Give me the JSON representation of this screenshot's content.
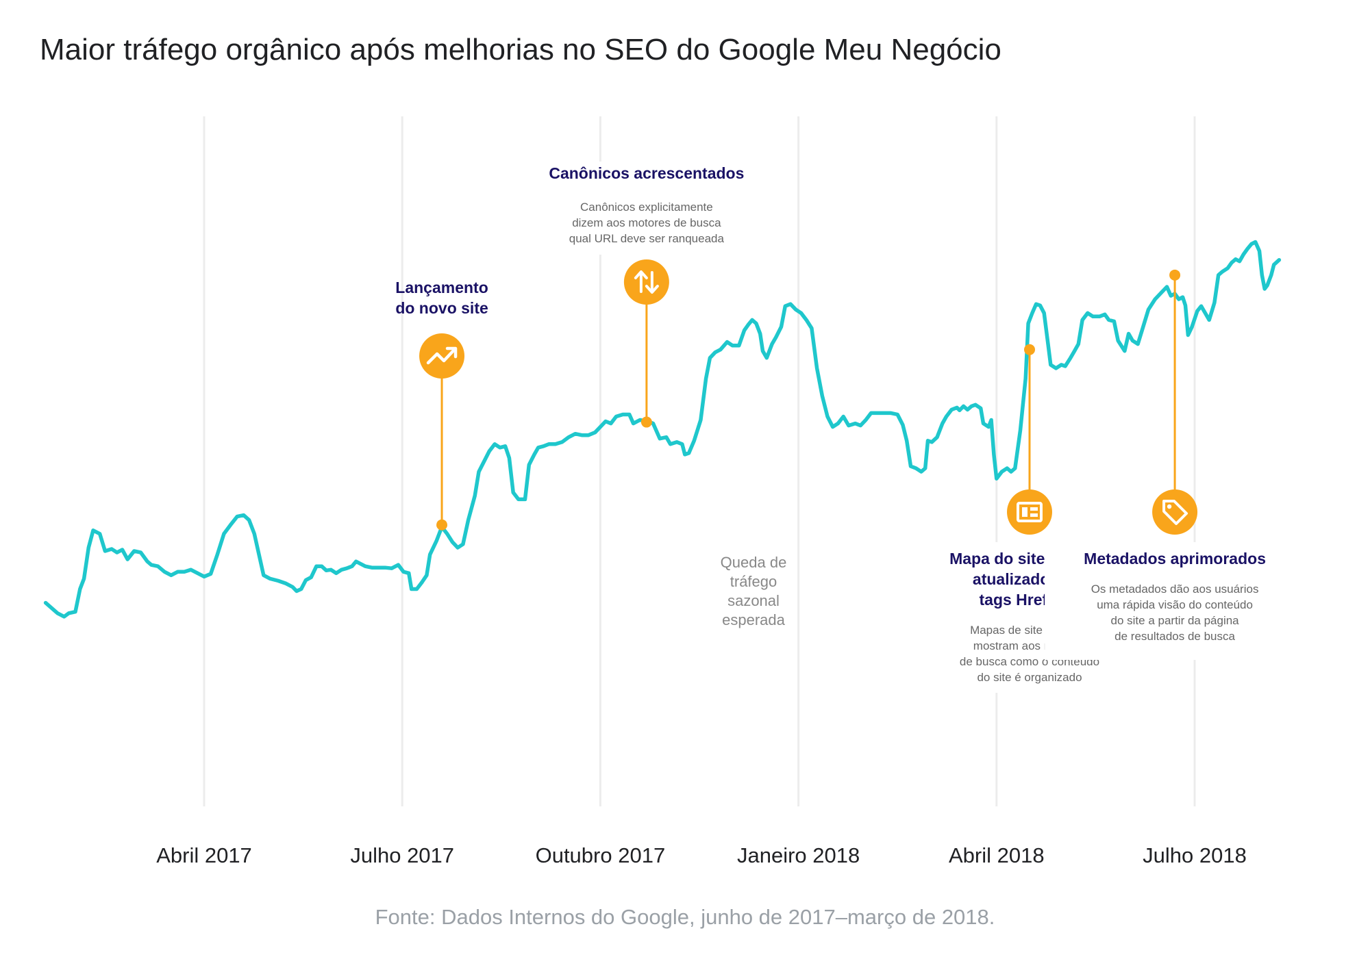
{
  "title": "Maior tráfego orgânico após melhorias no SEO do Google Meu Negócio",
  "source": "Fonte: Dados Internos do Google, junho de 2017–março de 2018.",
  "colors": {
    "line": "#1fc7cc",
    "marker": "#f9a51b",
    "heading": "#1a1265",
    "body": "#666666",
    "grid": "#ececec",
    "axis_label": "#202124",
    "note": "#888888"
  },
  "chart_data": {
    "type": "line",
    "title": "Maior tráfego orgânico após melhorias no SEO do Google Meu Negócio",
    "x_tick_labels": [
      "Abril 2017",
      "Julho 2017",
      "Outubro 2017",
      "Janeiro 2018",
      "Abril 2018",
      "Julho 2018"
    ],
    "x_unit": "months since 2017-01-01 (Abril 2017 = 3, Julho 2018 = 18)",
    "xlim": [
      0.6,
      18.4
    ],
    "ylim": [
      0,
      100
    ],
    "y_axis_visible": false,
    "grid": "vertical lines at month ticks",
    "series": [
      {
        "name": "Tráfego orgânico",
        "color": "#1fc7cc",
        "points": [
          [
            0.6,
            29.5
          ],
          [
            0.78,
            28.0
          ],
          [
            0.88,
            27.5
          ],
          [
            0.95,
            28.0
          ],
          [
            1.05,
            28.2
          ],
          [
            1.12,
            31.5
          ],
          [
            1.18,
            33.0
          ],
          [
            1.25,
            37.5
          ],
          [
            1.32,
            40.0
          ],
          [
            1.42,
            39.5
          ],
          [
            1.5,
            37.0
          ],
          [
            1.6,
            37.3
          ],
          [
            1.68,
            36.8
          ],
          [
            1.76,
            37.2
          ],
          [
            1.84,
            35.8
          ],
          [
            1.94,
            37.0
          ],
          [
            2.04,
            36.8
          ],
          [
            2.14,
            35.5
          ],
          [
            2.2,
            35.0
          ],
          [
            2.3,
            34.8
          ],
          [
            2.4,
            34.0
          ],
          [
            2.5,
            33.5
          ],
          [
            2.6,
            34.0
          ],
          [
            2.7,
            34.0
          ],
          [
            2.8,
            34.3
          ],
          [
            2.9,
            33.8
          ],
          [
            3.0,
            33.3
          ],
          [
            3.1,
            33.7
          ],
          [
            3.2,
            36.5
          ],
          [
            3.3,
            39.5
          ],
          [
            3.4,
            40.8
          ],
          [
            3.5,
            42.0
          ],
          [
            3.6,
            42.2
          ],
          [
            3.68,
            41.5
          ],
          [
            3.76,
            39.5
          ],
          [
            3.9,
            33.5
          ],
          [
            4.0,
            33.0
          ],
          [
            4.12,
            32.7
          ],
          [
            4.24,
            32.3
          ],
          [
            4.34,
            31.8
          ],
          [
            4.4,
            31.2
          ],
          [
            4.47,
            31.5
          ],
          [
            4.54,
            32.8
          ],
          [
            4.62,
            33.2
          ],
          [
            4.7,
            34.8
          ],
          [
            4.78,
            34.8
          ],
          [
            4.85,
            34.2
          ],
          [
            4.92,
            34.3
          ],
          [
            5.0,
            33.8
          ],
          [
            5.08,
            34.3
          ],
          [
            5.16,
            34.5
          ],
          [
            5.24,
            34.8
          ],
          [
            5.3,
            35.5
          ],
          [
            5.36,
            35.2
          ],
          [
            5.44,
            34.8
          ],
          [
            5.54,
            34.6
          ],
          [
            5.64,
            34.6
          ],
          [
            5.74,
            34.6
          ],
          [
            5.84,
            34.5
          ],
          [
            5.94,
            35.0
          ],
          [
            6.02,
            34.0
          ],
          [
            6.1,
            33.8
          ],
          [
            6.14,
            31.5
          ],
          [
            6.22,
            31.5
          ],
          [
            6.3,
            32.5
          ],
          [
            6.37,
            33.5
          ],
          [
            6.42,
            36.5
          ],
          [
            6.52,
            38.5
          ],
          [
            6.6,
            40.5
          ],
          [
            6.68,
            39.5
          ],
          [
            6.76,
            38.3
          ],
          [
            6.84,
            37.5
          ],
          [
            6.92,
            38.0
          ],
          [
            7.0,
            41.5
          ],
          [
            7.1,
            45.0
          ],
          [
            7.16,
            48.5
          ],
          [
            7.24,
            50.0
          ],
          [
            7.32,
            51.5
          ],
          [
            7.4,
            52.5
          ],
          [
            7.48,
            52.0
          ],
          [
            7.56,
            52.2
          ],
          [
            7.62,
            50.5
          ],
          [
            7.68,
            45.5
          ],
          [
            7.76,
            44.5
          ],
          [
            7.86,
            44.5
          ],
          [
            7.92,
            49.5
          ],
          [
            8.0,
            51.0
          ],
          [
            8.06,
            52.0
          ],
          [
            8.14,
            52.2
          ],
          [
            8.22,
            52.5
          ],
          [
            8.32,
            52.5
          ],
          [
            8.42,
            52.8
          ],
          [
            8.52,
            53.5
          ],
          [
            8.62,
            54.0
          ],
          [
            8.72,
            53.8
          ],
          [
            8.82,
            53.8
          ],
          [
            8.92,
            54.2
          ],
          [
            9.0,
            55.0
          ],
          [
            9.08,
            55.8
          ],
          [
            9.16,
            55.5
          ],
          [
            9.24,
            56.5
          ],
          [
            9.34,
            56.8
          ],
          [
            9.44,
            56.8
          ],
          [
            9.5,
            55.5
          ],
          [
            9.6,
            56.0
          ],
          [
            9.72,
            55.8
          ],
          [
            9.8,
            55.5
          ],
          [
            9.9,
            53.3
          ],
          [
            10.0,
            53.5
          ],
          [
            10.06,
            52.5
          ],
          [
            10.16,
            52.8
          ],
          [
            10.24,
            52.5
          ],
          [
            10.28,
            51.0
          ],
          [
            10.34,
            51.2
          ],
          [
            10.42,
            53.0
          ],
          [
            10.52,
            56.0
          ],
          [
            10.6,
            62.0
          ],
          [
            10.66,
            65.0
          ],
          [
            10.74,
            65.8
          ],
          [
            10.82,
            66.2
          ],
          [
            10.92,
            67.3
          ],
          [
            11.0,
            66.8
          ],
          [
            11.1,
            66.8
          ],
          [
            11.18,
            69.0
          ],
          [
            11.24,
            69.8
          ],
          [
            11.3,
            70.5
          ],
          [
            11.36,
            70.0
          ],
          [
            11.42,
            68.5
          ],
          [
            11.46,
            66.0
          ],
          [
            11.52,
            65.0
          ],
          [
            11.6,
            67.0
          ],
          [
            11.66,
            68.0
          ],
          [
            11.74,
            69.5
          ],
          [
            11.8,
            72.5
          ],
          [
            11.88,
            72.8
          ],
          [
            11.96,
            72.0
          ],
          [
            12.04,
            71.5
          ],
          [
            12.12,
            70.5
          ],
          [
            12.2,
            69.3
          ],
          [
            12.28,
            63.5
          ],
          [
            12.36,
            59.5
          ],
          [
            12.44,
            56.5
          ],
          [
            12.52,
            55.0
          ],
          [
            12.6,
            55.5
          ],
          [
            12.68,
            56.5
          ],
          [
            12.76,
            55.2
          ],
          [
            12.86,
            55.5
          ],
          [
            12.94,
            55.2
          ],
          [
            13.02,
            56.0
          ],
          [
            13.1,
            57.0
          ],
          [
            13.2,
            57.0
          ],
          [
            13.3,
            57.0
          ],
          [
            13.4,
            57.0
          ],
          [
            13.5,
            56.8
          ],
          [
            13.58,
            55.3
          ],
          [
            13.64,
            53.0
          ],
          [
            13.7,
            49.3
          ],
          [
            13.78,
            49.0
          ],
          [
            13.86,
            48.5
          ],
          [
            13.92,
            49.0
          ],
          [
            13.96,
            53.0
          ],
          [
            14.02,
            52.8
          ],
          [
            14.1,
            53.5
          ],
          [
            14.18,
            55.5
          ],
          [
            14.24,
            56.5
          ],
          [
            14.32,
            57.5
          ],
          [
            14.4,
            57.8
          ],
          [
            14.44,
            57.4
          ],
          [
            14.5,
            58.0
          ],
          [
            14.56,
            57.5
          ],
          [
            14.62,
            58.0
          ],
          [
            14.68,
            58.2
          ],
          [
            14.76,
            57.7
          ],
          [
            14.8,
            55.5
          ],
          [
            14.88,
            55.0
          ],
          [
            14.92,
            56.0
          ],
          [
            14.96,
            51.0
          ],
          [
            15.0,
            47.5
          ],
          [
            15.08,
            48.5
          ],
          [
            15.16,
            49.0
          ],
          [
            15.22,
            48.5
          ],
          [
            15.28,
            49.0
          ],
          [
            15.36,
            54.5
          ],
          [
            15.44,
            62.0
          ],
          [
            15.48,
            70.0
          ],
          [
            15.54,
            71.5
          ],
          [
            15.6,
            72.8
          ],
          [
            15.66,
            72.6
          ],
          [
            15.72,
            71.5
          ],
          [
            15.78,
            67.0
          ],
          [
            15.82,
            64.0
          ],
          [
            15.9,
            63.5
          ],
          [
            15.98,
            64.0
          ],
          [
            16.04,
            63.8
          ],
          [
            16.12,
            65.0
          ],
          [
            16.18,
            66.0
          ],
          [
            16.24,
            67.0
          ],
          [
            16.3,
            70.5
          ],
          [
            16.38,
            71.5
          ],
          [
            16.46,
            71.0
          ],
          [
            16.56,
            71.0
          ],
          [
            16.64,
            71.3
          ],
          [
            16.7,
            70.5
          ],
          [
            16.78,
            70.3
          ],
          [
            16.84,
            67.5
          ],
          [
            16.94,
            66.0
          ],
          [
            17.0,
            68.5
          ],
          [
            17.06,
            67.5
          ],
          [
            17.14,
            67.0
          ],
          [
            17.22,
            69.5
          ],
          [
            17.3,
            72.0
          ],
          [
            17.4,
            73.5
          ],
          [
            17.5,
            74.5
          ],
          [
            17.58,
            75.3
          ],
          [
            17.64,
            74.0
          ],
          [
            17.7,
            74.3
          ],
          [
            17.76,
            73.5
          ],
          [
            17.82,
            73.8
          ],
          [
            17.86,
            72.6
          ],
          [
            17.9,
            68.3
          ],
          [
            17.96,
            69.5
          ],
          [
            18.04,
            71.8
          ],
          [
            18.1,
            72.5
          ],
          [
            18.16,
            71.5
          ],
          [
            18.22,
            70.5
          ],
          [
            18.3,
            73.0
          ],
          [
            18.36,
            77.0
          ],
          [
            18.42,
            77.5
          ],
          [
            18.5,
            78.0
          ],
          [
            18.56,
            78.8
          ],
          [
            18.62,
            79.3
          ],
          [
            18.68,
            79.0
          ],
          [
            18.74,
            80.0
          ],
          [
            18.8,
            80.8
          ],
          [
            18.86,
            81.5
          ],
          [
            18.92,
            81.8
          ],
          [
            18.98,
            80.5
          ],
          [
            19.02,
            77.0
          ],
          [
            19.06,
            75.0
          ],
          [
            19.1,
            75.5
          ],
          [
            19.16,
            77.0
          ],
          [
            19.2,
            78.5
          ],
          [
            19.28,
            79.2
          ]
        ]
      }
    ],
    "annotations": [
      {
        "id": "lancamento",
        "x": 6.6,
        "y": 40.8,
        "heading": [
          "Lançamento",
          "do novo site"
        ],
        "icon": "trending-up-icon",
        "description": []
      },
      {
        "id": "canonicos",
        "x": 9.7,
        "y": 55.7,
        "heading": [
          "Canônicos acrescentados"
        ],
        "icon": "swap-vertical-icon",
        "description": [
          "Canônicos explicitamente",
          "dizem aos motores de busca",
          "qual URL deve ser ranqueada"
        ]
      },
      {
        "id": "sitemap",
        "x": 15.5,
        "y": 66.2,
        "heading": [
          "Mapa do site em XML",
          "atualizado com",
          "tags Hreflang"
        ],
        "icon": "sitemap-icon",
        "description": [
          "Mapas de site em XML",
          "mostram aos motores",
          "de busca como o conteúdo",
          "do site é organizado"
        ]
      },
      {
        "id": "metadados",
        "x": 17.7,
        "y": 77.0,
        "heading": [
          "Metadados aprimorados"
        ],
        "icon": "tag-icon",
        "description": [
          "Os metadados dão aos usuários",
          "uma rápida visão do conteúdo",
          "do site a partir da página",
          "de resultados de busca"
        ]
      }
    ],
    "notes": [
      {
        "id": "queda",
        "lines": [
          "Queda de",
          "tráfego",
          "sazonal",
          "esperada"
        ]
      }
    ]
  }
}
